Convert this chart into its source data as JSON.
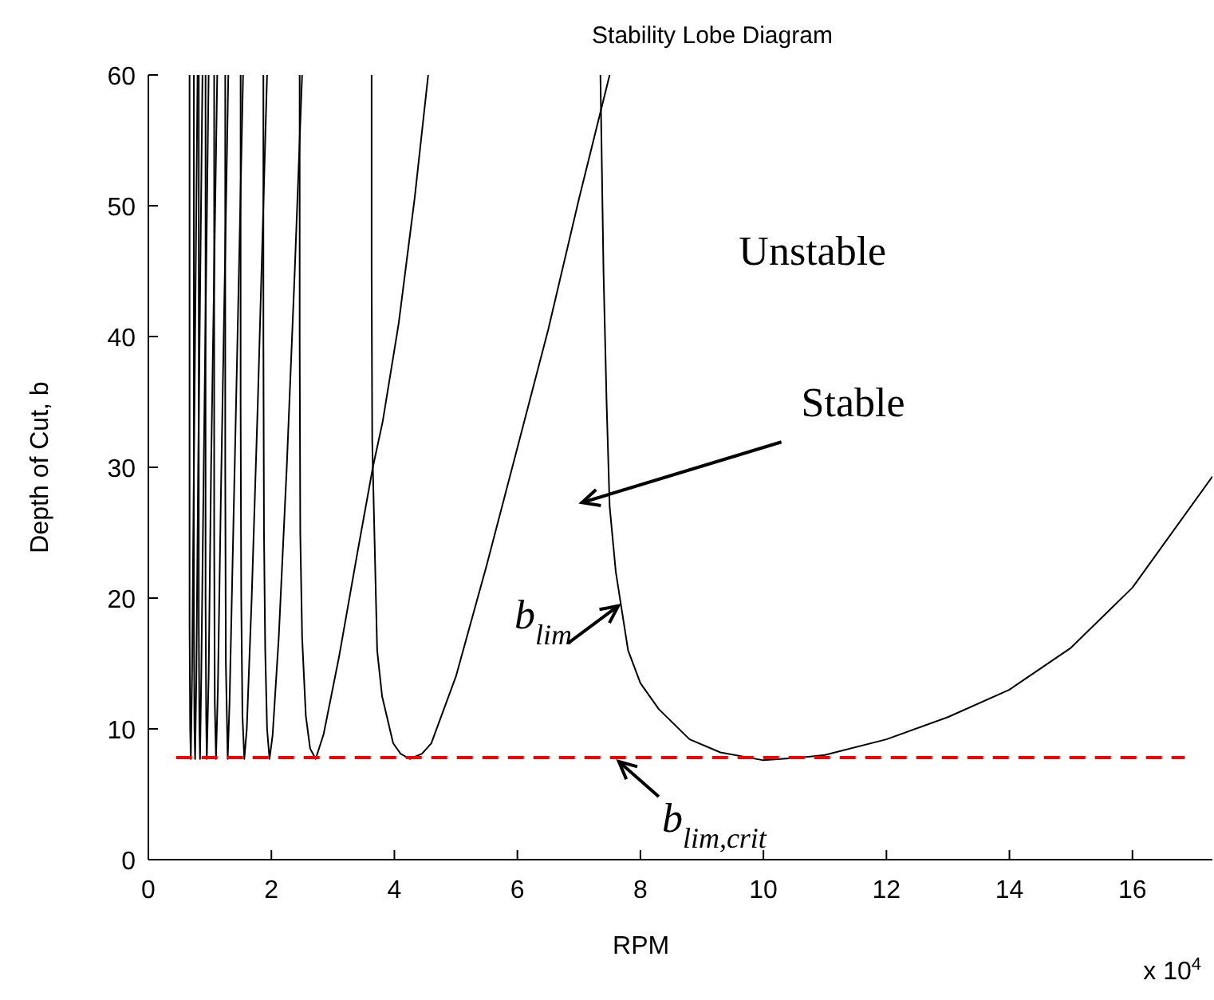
{
  "chart_data": {
    "type": "line",
    "title": "Stability Lobe Diagram",
    "xlabel": "RPM",
    "ylabel": "Depth of Cut, b",
    "xlim": [
      0,
      17.3
    ],
    "ylim": [
      0,
      60
    ],
    "xticks": [
      0,
      2,
      4,
      6,
      8,
      10,
      12,
      14,
      16
    ],
    "yticks": [
      0,
      10,
      20,
      30,
      40,
      50,
      60
    ],
    "grid": false,
    "marker": "none",
    "line_style": "solid",
    "series": [
      {
        "color": "#000000",
        "x": [
          7.35,
          7.4,
          7.45,
          7.5,
          7.6,
          7.7,
          7.8,
          8.0,
          8.3,
          8.8,
          9.3,
          10,
          10.6,
          11,
          12,
          13,
          14,
          15,
          16,
          17.3
        ],
        "values": [
          60,
          45,
          35,
          27,
          22,
          19,
          16,
          13.5,
          11.5,
          9.2,
          8.2,
          7.6,
          7.8,
          8.0,
          9.2,
          10.9,
          13,
          16.2,
          20.8,
          29.3
        ]
      },
      {
        "color": "#000000",
        "x": [
          3.63,
          3.63,
          3.64,
          3.68,
          3.72,
          3.8,
          3.98,
          4.1,
          4.25,
          4.45,
          4.6,
          5.0,
          5.5,
          6.0,
          6.5,
          7.0,
          7.5
        ],
        "values": [
          60,
          45,
          32,
          24,
          16,
          12.5,
          8.9,
          8.1,
          7.7,
          8.1,
          8.9,
          14,
          22.5,
          31.5,
          40.5,
          50.5,
          60
        ]
      },
      {
        "color": "#000000",
        "x": [
          2.46,
          2.46,
          2.47,
          2.5,
          2.56,
          2.63,
          2.72,
          2.85,
          3.1,
          3.4,
          3.65,
          3.81,
          4.07,
          4.33,
          4.55
        ],
        "values": [
          60,
          40,
          25,
          17,
          11,
          8.5,
          7.7,
          9.6,
          15.5,
          23.5,
          30,
          33.5,
          41,
          50.6,
          60
        ]
      },
      {
        "color": "#000000",
        "x": [
          1.87,
          1.87,
          1.88,
          1.9,
          1.93,
          1.97,
          2.02,
          2.12,
          2.25,
          2.38,
          2.5
        ],
        "values": [
          60,
          40,
          25,
          16,
          10,
          7.7,
          9.5,
          17,
          30,
          45,
          60
        ]
      },
      {
        "color": "#000000",
        "x": [
          1.5,
          1.5,
          1.51,
          1.53,
          1.56,
          1.6,
          1.68,
          1.78,
          1.93
        ],
        "values": [
          60,
          35,
          20,
          11,
          7.7,
          10,
          20,
          35,
          60
        ]
      },
      {
        "color": "#000000",
        "x": [
          1.25,
          1.25,
          1.26,
          1.29,
          1.32,
          1.38,
          1.45,
          1.54
        ],
        "values": [
          60,
          30,
          15,
          7.7,
          12,
          25,
          40,
          60
        ]
      },
      {
        "color": "#000000",
        "x": [
          1.07,
          1.07,
          1.08,
          1.1,
          1.13,
          1.18,
          1.3
        ],
        "values": [
          60,
          25,
          12,
          7.7,
          13,
          28,
          60
        ]
      },
      {
        "color": "#000000",
        "x": [
          0.93,
          0.93,
          0.94,
          0.95,
          0.98,
          1.02,
          1.12
        ],
        "values": [
          60,
          20,
          11,
          7.7,
          14,
          30,
          60
        ]
      },
      {
        "color": "#000000",
        "x": [
          0.82,
          0.82,
          0.83,
          0.84,
          0.86,
          0.9,
          0.98
        ],
        "values": [
          60,
          18,
          10,
          7.7,
          14,
          30,
          60
        ]
      },
      {
        "color": "#000000",
        "x": [
          0.74,
          0.74,
          0.75,
          0.76,
          0.78,
          0.81,
          0.88
        ],
        "values": [
          60,
          18,
          10,
          7.7,
          14,
          30,
          60
        ]
      },
      {
        "color": "#000000",
        "x": [
          0.67,
          0.67,
          0.68,
          0.69,
          0.71,
          0.74,
          0.8
        ],
        "values": [
          60,
          18,
          10,
          7.7,
          14,
          30,
          60
        ]
      },
      {
        "color": "#ff0000",
        "line_style": "dashed",
        "x": [
          0.45,
          16.85
        ],
        "values": [
          7.8,
          7.8
        ]
      }
    ],
    "annotations": [
      "Stable",
      {
        "text": "b$_{lim}$",
        "x": 7.64,
        "y": 19.4
      },
      {
        "text": "b$_{lim,crit}$",
        "x": 7.65,
        "y": 7.5
      },
      "Unstable",
      "x 10$^{4}$"
    ]
  }
}
